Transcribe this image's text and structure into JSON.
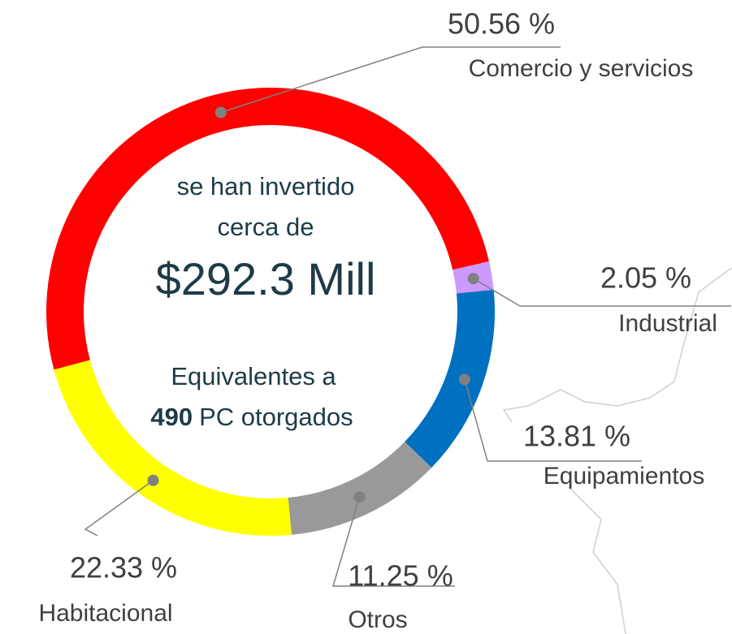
{
  "chart_data": {
    "type": "donut",
    "categories": [
      "Comercio y servicios",
      "Industrial",
      "Equipamientos",
      "Otros",
      "Habitacional"
    ],
    "values": [
      50.56,
      2.05,
      13.81,
      11.25,
      22.33
    ],
    "value_labels": [
      "50.56 %",
      "2.05 %",
      "13.81 %",
      "11.25 %",
      "22.33 %"
    ],
    "colors": [
      "#ff0000",
      "#cc99ff",
      "#0070c0",
      "#999999",
      "#ffff00"
    ],
    "center_text": {
      "line1": "se han invertido",
      "line2": "cerca de",
      "amount": "$292.3 Mill",
      "line3": "Equivalentes a",
      "count": "490",
      "count_suffix": "PC otorgados"
    }
  }
}
